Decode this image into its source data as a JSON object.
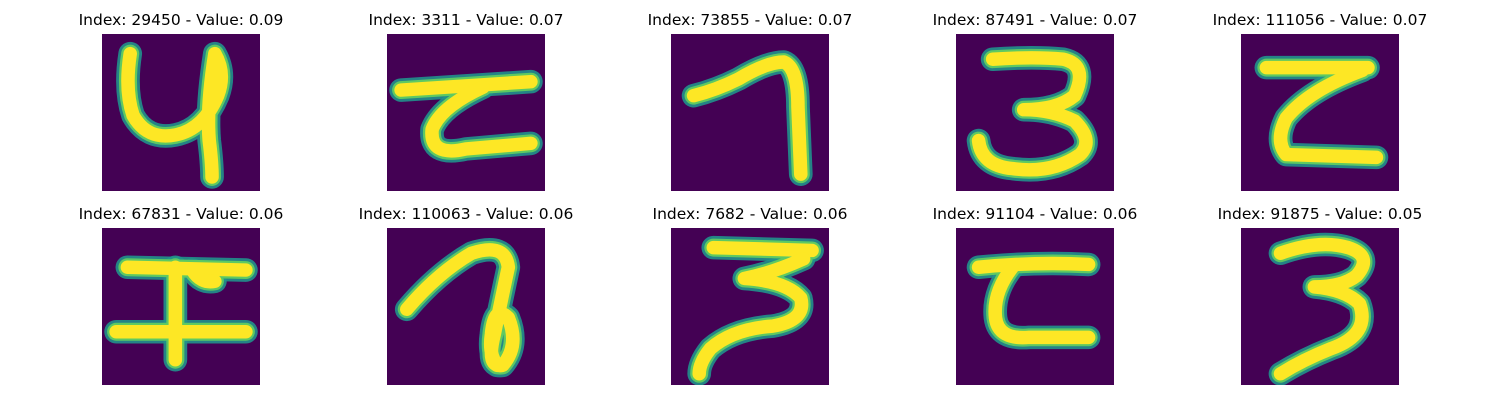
{
  "colors": {
    "background": "#440154",
    "stroke_edge": "#21918c",
    "stroke_mid": "#5ec962",
    "stroke_core": "#fde725"
  },
  "panels": [
    {
      "title": "Index: 29450 - Value: 0.09",
      "glyph": "4"
    },
    {
      "title": "Index: 3311 - Value: 0.07",
      "glyph": "z-loop"
    },
    {
      "title": "Index: 73855 - Value: 0.07",
      "glyph": "7"
    },
    {
      "title": "Index: 87491 - Value: 0.07",
      "glyph": "3"
    },
    {
      "title": "Index: 111056 - Value: 0.07",
      "glyph": "z-block"
    },
    {
      "title": "Index: 67831 - Value: 0.06",
      "glyph": "cross-bar"
    },
    {
      "title": "Index: 110063 - Value: 0.06",
      "glyph": "loop"
    },
    {
      "title": "Index: 7682 - Value: 0.06",
      "glyph": "3-slant"
    },
    {
      "title": "Index: 91104 - Value: 0.06",
      "glyph": "z-c"
    },
    {
      "title": "Index: 91875 - Value: 0.05",
      "glyph": "3-thin"
    }
  ]
}
